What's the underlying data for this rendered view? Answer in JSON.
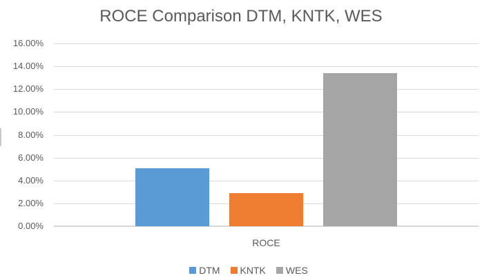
{
  "chart_data": {
    "type": "bar",
    "title": "ROCE Comparison DTM, KNTK, WES",
    "categories": [
      "ROCE"
    ],
    "series": [
      {
        "name": "DTM",
        "values": [
          5.1
        ],
        "color": "#5B9BD5"
      },
      {
        "name": "KNTK",
        "values": [
          2.9
        ],
        "color": "#ED7D31"
      },
      {
        "name": "WES",
        "values": [
          13.4
        ],
        "color": "#A5A5A5"
      }
    ],
    "xlabel": "",
    "ylabel": "",
    "ylim": [
      0,
      16
    ],
    "ytick_step": 2,
    "ytick_labels": [
      "0.00%",
      "2.00%",
      "4.00%",
      "6.00%",
      "8.00%",
      "10.00%",
      "12.00%",
      "14.00%",
      "16.00%"
    ],
    "value_unit": "percent",
    "grid": true,
    "legend_position": "bottom"
  },
  "colors": {
    "title_text": "#595959",
    "axis_text": "#595959",
    "gridline": "#D9D9D9",
    "axis_line": "#D6D6D6",
    "background": "#FFFFFF",
    "dtm_bar": "#5B9BD5",
    "kntk_bar": "#ED7D31",
    "wes_bar": "#A5A5A5"
  }
}
